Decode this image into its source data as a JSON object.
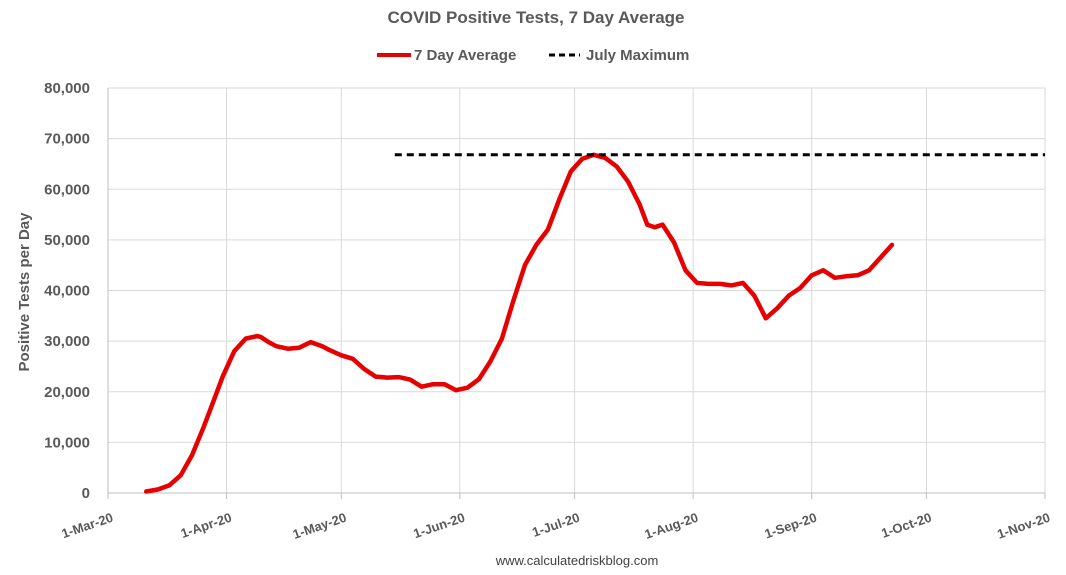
{
  "chart_data": {
    "type": "line",
    "title": "COVID Positive Tests, 7 Day Average",
    "ylabel": "Positive Tests per Day",
    "xlabel": "",
    "ylim": [
      0,
      80000
    ],
    "yticks": [
      "0",
      "10,000",
      "20,000",
      "30,000",
      "40,000",
      "50,000",
      "60,000",
      "70,000",
      "80,000"
    ],
    "xlim": [
      "2020-03-01",
      "2020-11-01"
    ],
    "xticks": [
      {
        "date": "2020-03-01",
        "label": "1-Mar-20"
      },
      {
        "date": "2020-04-01",
        "label": "1-Apr-20"
      },
      {
        "date": "2020-05-01",
        "label": "1-May-20"
      },
      {
        "date": "2020-06-01",
        "label": "1-Jun-20"
      },
      {
        "date": "2020-07-01",
        "label": "1-Jul-20"
      },
      {
        "date": "2020-08-01",
        "label": "1-Aug-20"
      },
      {
        "date": "2020-09-01",
        "label": "1-Sep-20"
      },
      {
        "date": "2020-10-01",
        "label": "1-Oct-20"
      },
      {
        "date": "2020-11-01",
        "label": "1-Nov-20"
      }
    ],
    "grid": true,
    "legend_position": "top",
    "series": [
      {
        "name": "7 Day Average",
        "color": "#e60000",
        "style": "solid",
        "x": [
          "2020-03-11",
          "2020-03-14",
          "2020-03-17",
          "2020-03-20",
          "2020-03-23",
          "2020-03-26",
          "2020-03-28",
          "2020-03-31",
          "2020-04-03",
          "2020-04-06",
          "2020-04-09",
          "2020-04-10",
          "2020-04-12",
          "2020-04-14",
          "2020-04-17",
          "2020-04-20",
          "2020-04-23",
          "2020-04-26",
          "2020-04-28",
          "2020-05-01",
          "2020-05-04",
          "2020-05-07",
          "2020-05-10",
          "2020-05-13",
          "2020-05-16",
          "2020-05-19",
          "2020-05-22",
          "2020-05-25",
          "2020-05-28",
          "2020-05-31",
          "2020-06-03",
          "2020-06-06",
          "2020-06-09",
          "2020-06-12",
          "2020-06-15",
          "2020-06-18",
          "2020-06-21",
          "2020-06-24",
          "2020-06-27",
          "2020-06-30",
          "2020-07-03",
          "2020-07-06",
          "2020-07-09",
          "2020-07-12",
          "2020-07-15",
          "2020-07-18",
          "2020-07-20",
          "2020-07-22",
          "2020-07-24",
          "2020-07-27",
          "2020-07-30",
          "2020-08-02",
          "2020-08-05",
          "2020-08-08",
          "2020-08-11",
          "2020-08-14",
          "2020-08-17",
          "2020-08-20",
          "2020-08-23",
          "2020-08-26",
          "2020-08-29",
          "2020-09-01",
          "2020-09-04",
          "2020-09-07",
          "2020-09-10",
          "2020-09-13",
          "2020-09-16",
          "2020-09-19",
          "2020-09-22",
          "2020-09-25",
          "2020-09-28",
          "2020-10-01",
          "2020-10-04",
          "2020-10-07",
          "2020-10-10",
          "2020-10-13"
        ],
        "y": [
          300,
          700,
          1500,
          3500,
          7500,
          13000,
          17000,
          23000,
          28000,
          30500,
          31000,
          30800,
          29800,
          29000,
          28500,
          28700,
          29800,
          29000,
          28200,
          27200,
          26500,
          24500,
          23000,
          22800,
          22900,
          22400,
          21000,
          21500,
          21500,
          20300,
          20800,
          22500,
          26000,
          30500,
          38000,
          45000,
          49000,
          52000,
          58000,
          63500,
          66000,
          66800,
          66200,
          64500,
          61500,
          57000,
          53000,
          52500,
          53000,
          49500,
          44000,
          41500,
          41300,
          41300,
          41000,
          41500,
          39000,
          34500,
          36500,
          39000,
          40500,
          43000,
          44000,
          42500,
          42800,
          43000,
          44000,
          46500,
          49000,
          null,
          null,
          null,
          null,
          null,
          null,
          null
        ]
      },
      {
        "name": "July Maximum",
        "color": "#000000",
        "style": "dashed",
        "x": [
          "2020-05-15",
          "2020-11-01"
        ],
        "y": [
          66800,
          66800
        ]
      }
    ]
  },
  "footer": "www.calculatedriskblog.com"
}
